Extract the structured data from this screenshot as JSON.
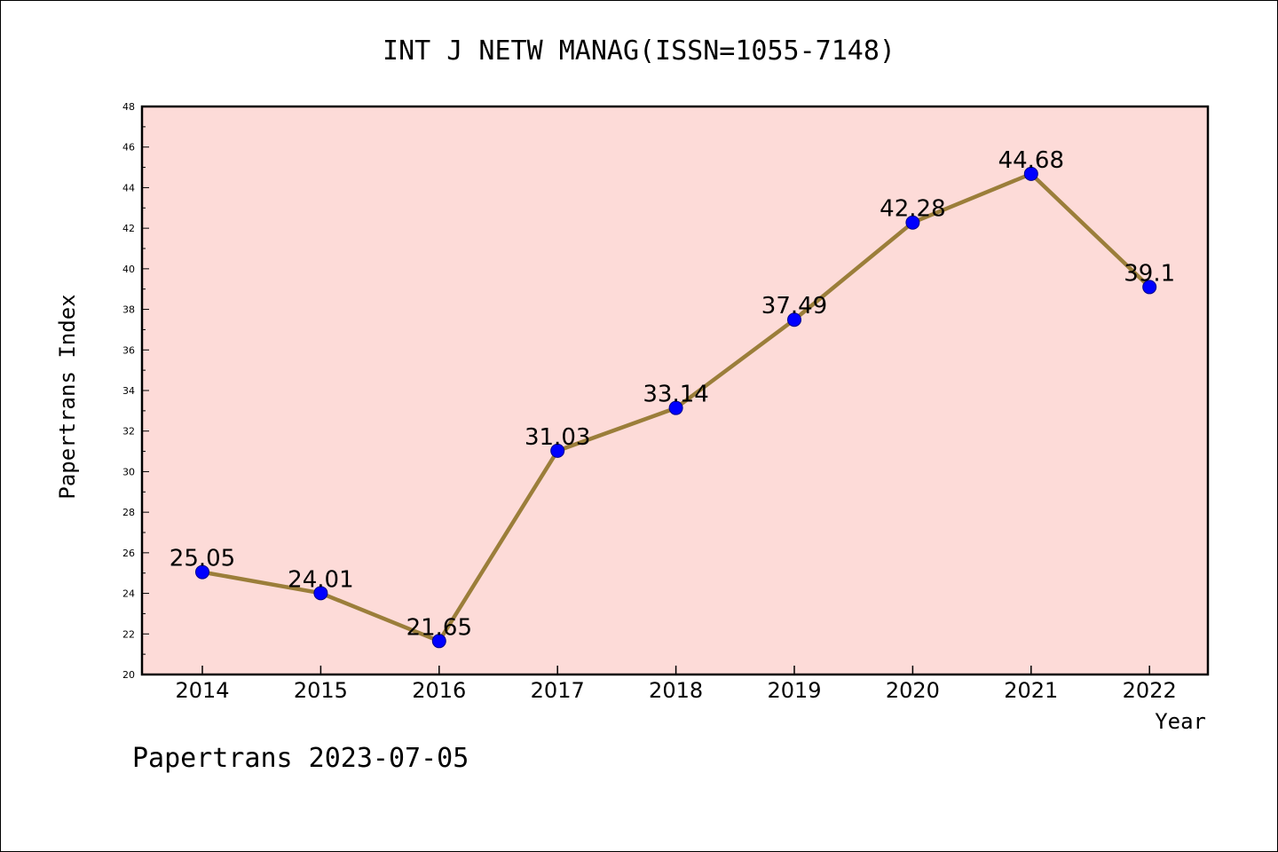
{
  "chart_data": {
    "type": "line",
    "title": "INT J NETW MANAG(ISSN=1055-7148)",
    "xlabel": "Year",
    "ylabel": "Papertrans Index",
    "categories": [
      "2014",
      "2015",
      "2016",
      "2017",
      "2018",
      "2019",
      "2020",
      "2021",
      "2022"
    ],
    "values": [
      25.05,
      24.01,
      21.65,
      31.03,
      33.14,
      37.49,
      42.28,
      44.68,
      39.1
    ],
    "data_labels": [
      "25.05",
      "24.01",
      "21.65",
      "31.03",
      "33.14",
      "37.49",
      "42.28",
      "44.68",
      "39.1"
    ],
    "ylim": [
      20,
      48
    ],
    "yticks": [
      20,
      22,
      24,
      26,
      28,
      30,
      32,
      34,
      36,
      38,
      40,
      42,
      44,
      46,
      48
    ],
    "grid": false,
    "legend": "none",
    "colors": {
      "plot_background": "#fddbd8",
      "line": "#9b7e3a",
      "marker": "#0000ff",
      "marker_edge": "#00008b"
    }
  },
  "footer": {
    "text": "Papertrans 2023-07-05"
  }
}
